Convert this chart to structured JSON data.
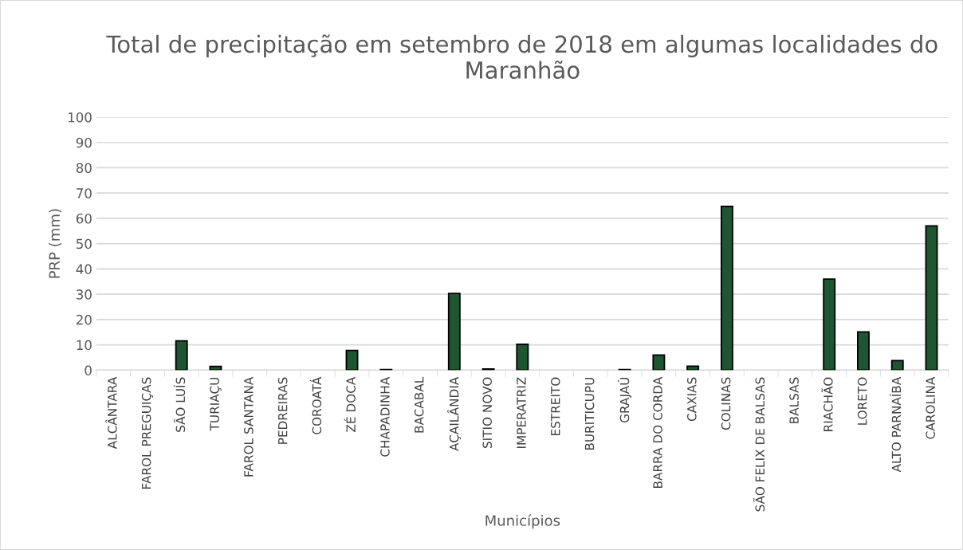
{
  "chart_data": {
    "type": "bar",
    "title": "Total de precipitação em setembro de 2018 em algumas localidades do Maranhão",
    "xlabel": "Municípios",
    "ylabel": "PRP (mm)",
    "categories": [
      "ALCÂNTARA",
      "FAROL PREGUIÇAS",
      "SÃO LUÍS",
      "TURIAÇU",
      "FAROL SANTANA",
      "PEDREIRAS",
      "COROATÁ",
      "ZÉ DOCA",
      "CHAPADINHA",
      "BACABAL",
      "AÇAILÂNDIA",
      "SITIO NOVO",
      "IMPERATRIZ",
      "ESTREITO",
      "BURITICUPU",
      "GRAJAÚ",
      "BARRA DO CORDA",
      "CAXIAS",
      "COLINAS",
      "SÃO FELIX DE BALSAS",
      "BALSAS",
      "RIACHÃO",
      "LORETO",
      "ALTO PARNAÍBA",
      "CAROLINA"
    ],
    "values": [
      0,
      0,
      11.6,
      1.5,
      0,
      0,
      0,
      7.8,
      0.2,
      0,
      30.3,
      0.5,
      10.2,
      0,
      0,
      0.2,
      6.0,
      1.6,
      64.7,
      0,
      0,
      36.0,
      15.1,
      3.8,
      57.0
    ],
    "color": "#1e5631",
    "ylim": [
      0,
      100
    ],
    "yticks": [
      0,
      10,
      20,
      30,
      40,
      50,
      60,
      70,
      80,
      90,
      100
    ],
    "grid": "y",
    "legend": false
  }
}
